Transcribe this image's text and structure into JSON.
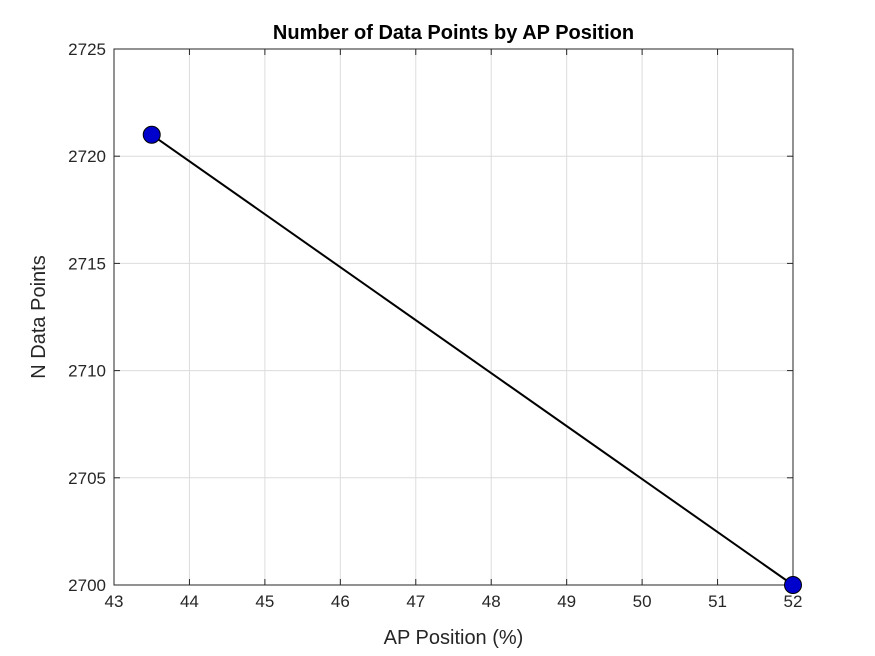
{
  "chart_data": {
    "type": "line",
    "title": "Number of Data Points by AP Position",
    "xlabel": "AP Position (%)",
    "ylabel": "N Data Points",
    "xlim": [
      43,
      52
    ],
    "ylim": [
      2700,
      2725
    ],
    "xticks": [
      43,
      44,
      45,
      46,
      47,
      48,
      49,
      50,
      51,
      52
    ],
    "yticks": [
      2700,
      2705,
      2710,
      2715,
      2720,
      2725
    ],
    "grid": true,
    "series": [
      {
        "x": [
          43.5,
          52
        ],
        "y": [
          2721,
          2700
        ],
        "line_color": "#000000",
        "marker_color": "#0000CC"
      }
    ]
  }
}
